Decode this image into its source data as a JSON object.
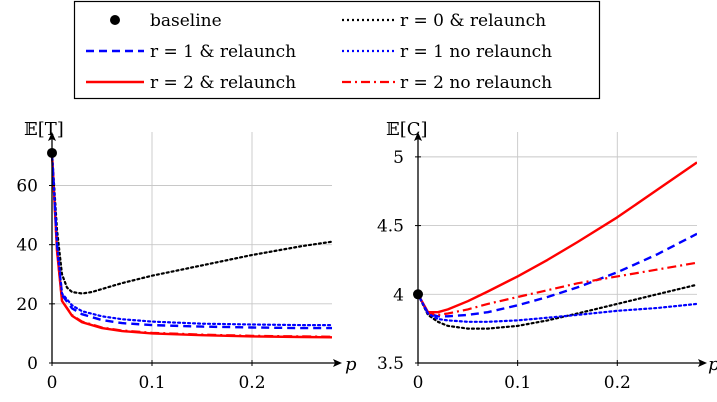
{
  "legend": [
    {
      "label": "baseline",
      "color": "#000000",
      "style": "marker"
    },
    {
      "label": "r = 0 & relaunch",
      "color": "#000000",
      "style": "dotted"
    },
    {
      "label": "r = 1 & relaunch",
      "color": "#0000ff",
      "style": "dashed"
    },
    {
      "label": "r = 1 no relaunch",
      "color": "#0000ff",
      "style": "dotted"
    },
    {
      "label": "r = 2 & relaunch",
      "color": "#ff0000",
      "style": "solid"
    },
    {
      "label": "r = 2 no relaunch",
      "color": "#ff0000",
      "style": "dashdot"
    }
  ],
  "chart_data": [
    {
      "type": "line",
      "ylabel": "𝔼[T]",
      "xlabel": "p",
      "xlim": [
        0,
        0.28
      ],
      "ylim": [
        0,
        72
      ],
      "xticks": [
        0,
        0.1,
        0.2
      ],
      "xtick_labels": [
        "0",
        "0.1",
        "0.2"
      ],
      "yticks": [
        0,
        20,
        40,
        60
      ],
      "ytick_labels": [
        "0",
        "20",
        "40",
        "60"
      ],
      "grid": true,
      "baseline": {
        "x": 0,
        "y": 71
      },
      "series": [
        {
          "name": "r = 0 & relaunch",
          "color": "#000000",
          "style": "dotted",
          "x": [
            0,
            0.005,
            0.01,
            0.015,
            0.02,
            0.03,
            0.04,
            0.05,
            0.07,
            0.1,
            0.15,
            0.2,
            0.25,
            0.28
          ],
          "y": [
            71,
            45,
            30,
            25.5,
            24,
            23.5,
            24,
            25,
            27,
            29.5,
            33,
            36.5,
            39.5,
            41
          ]
        },
        {
          "name": "r = 1 & relaunch",
          "color": "#0000ff",
          "style": "dashed",
          "x": [
            0,
            0.005,
            0.01,
            0.02,
            0.03,
            0.05,
            0.07,
            0.1,
            0.15,
            0.2,
            0.25,
            0.28
          ],
          "y": [
            71,
            40,
            23,
            18.5,
            16.5,
            14.5,
            13.5,
            12.8,
            12.3,
            12,
            11.8,
            11.8
          ]
        },
        {
          "name": "r = 1 no relaunch",
          "color": "#0000ff",
          "style": "dotted",
          "x": [
            0,
            0.005,
            0.01,
            0.02,
            0.03,
            0.05,
            0.07,
            0.1,
            0.15,
            0.2,
            0.25,
            0.28
          ],
          "y": [
            71,
            40,
            23.5,
            19.5,
            17.5,
            15.8,
            14.8,
            14,
            13.3,
            13,
            12.8,
            12.8
          ]
        },
        {
          "name": "r = 2 & relaunch",
          "color": "#ff0000",
          "style": "solid",
          "x": [
            0,
            0.005,
            0.01,
            0.02,
            0.03,
            0.05,
            0.07,
            0.1,
            0.15,
            0.2,
            0.25,
            0.28
          ],
          "y": [
            71,
            38,
            21,
            16,
            13.8,
            11.8,
            10.8,
            10,
            9.4,
            9,
            8.8,
            8.7
          ]
        },
        {
          "name": "r = 2 no relaunch",
          "color": "#ff0000",
          "style": "dashdot",
          "x": [
            0,
            0.005,
            0.01,
            0.02,
            0.03,
            0.05,
            0.07,
            0.1,
            0.15,
            0.2,
            0.25,
            0.28
          ],
          "y": [
            71,
            38,
            21,
            16.2,
            14,
            12,
            11,
            10.2,
            9.6,
            9.2,
            9,
            8.9
          ]
        }
      ]
    },
    {
      "type": "line",
      "ylabel": "𝔼[C]",
      "xlabel": "p",
      "xlim": [
        0,
        0.28
      ],
      "ylim": [
        3.5,
        5.05
      ],
      "xticks": [
        0,
        0.1,
        0.2
      ],
      "xtick_labels": [
        "0",
        "0.1",
        "0.2"
      ],
      "yticks": [
        3.5,
        4,
        4.5,
        5
      ],
      "ytick_labels": [
        "3.5",
        "4",
        "4.5",
        "5"
      ],
      "grid": true,
      "baseline": {
        "x": 0,
        "y": 4.0
      },
      "series": [
        {
          "name": "r = 0 & relaunch",
          "color": "#000000",
          "style": "dotted",
          "x": [
            0,
            0.01,
            0.02,
            0.03,
            0.05,
            0.07,
            0.1,
            0.13,
            0.16,
            0.2,
            0.24,
            0.28
          ],
          "y": [
            4.0,
            3.85,
            3.8,
            3.77,
            3.75,
            3.75,
            3.77,
            3.81,
            3.86,
            3.93,
            4.0,
            4.07
          ]
        },
        {
          "name": "r = 1 & relaunch",
          "color": "#0000ff",
          "style": "dashed",
          "x": [
            0,
            0.01,
            0.02,
            0.03,
            0.05,
            0.07,
            0.1,
            0.13,
            0.16,
            0.2,
            0.24,
            0.28
          ],
          "y": [
            4.0,
            3.86,
            3.84,
            3.84,
            3.85,
            3.87,
            3.92,
            3.98,
            4.05,
            4.16,
            4.29,
            4.44
          ]
        },
        {
          "name": "r = 1 no relaunch",
          "color": "#0000ff",
          "style": "dotted",
          "x": [
            0,
            0.01,
            0.02,
            0.03,
            0.05,
            0.07,
            0.1,
            0.13,
            0.16,
            0.2,
            0.24,
            0.28
          ],
          "y": [
            4.0,
            3.86,
            3.82,
            3.81,
            3.8,
            3.8,
            3.81,
            3.83,
            3.85,
            3.88,
            3.9,
            3.93
          ]
        },
        {
          "name": "r = 2 & relaunch",
          "color": "#ff0000",
          "style": "solid",
          "x": [
            0,
            0.01,
            0.02,
            0.03,
            0.05,
            0.07,
            0.1,
            0.13,
            0.16,
            0.2,
            0.24,
            0.28
          ],
          "y": [
            4.0,
            3.87,
            3.87,
            3.89,
            3.95,
            4.02,
            4.13,
            4.25,
            4.38,
            4.56,
            4.76,
            4.96
          ]
        },
        {
          "name": "r = 2 no relaunch",
          "color": "#ff0000",
          "style": "dashdot",
          "x": [
            0,
            0.01,
            0.02,
            0.03,
            0.05,
            0.07,
            0.1,
            0.13,
            0.16,
            0.2,
            0.24,
            0.28
          ],
          "y": [
            4.0,
            3.86,
            3.85,
            3.86,
            3.89,
            3.93,
            3.98,
            4.03,
            4.08,
            4.13,
            4.18,
            4.23
          ]
        }
      ]
    }
  ]
}
